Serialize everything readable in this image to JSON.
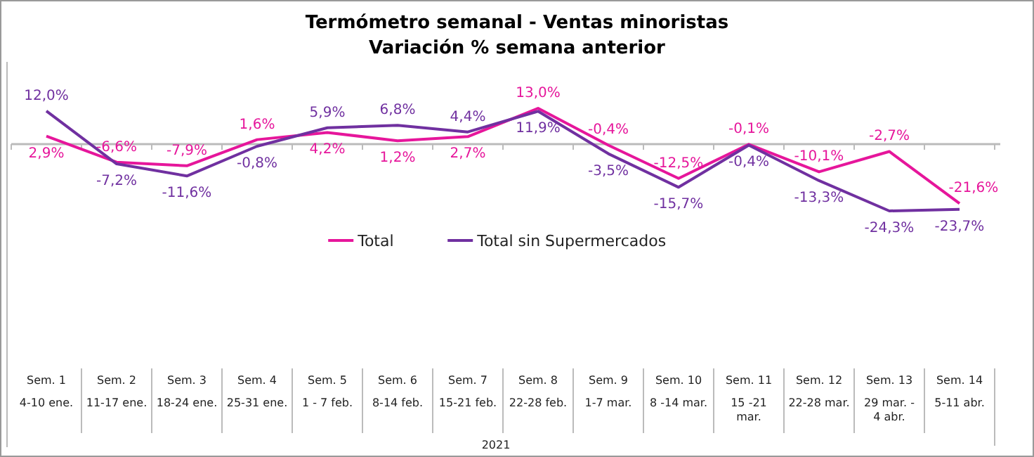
{
  "chart_data": {
    "type": "line",
    "title": "Termómetro semanal - Ventas minoristas",
    "subtitle": "Variación % semana anterior",
    "xlabel": "2021",
    "categories": [
      "Sem. 1\n4-10 ene.",
      "Sem. 2\n11-17 ene.",
      "Sem. 3\n18-24 ene.",
      "Sem. 4\n25-31 ene.",
      "Sem. 5\n1 - 7 feb.",
      "Sem. 6\n8-14 feb.",
      "Sem. 7\n15-21 feb.",
      "Sem. 8\n22-28 feb.",
      "Sem. 9\n1-7 mar.",
      "Sem. 10\n8 -14 mar.",
      "Sem. 11\n15 -21 mar.",
      "Sem. 12\n22-28 mar.",
      "Sem. 13\n29 mar. - 4 abr.",
      "Sem. 14\n5-11 abr."
    ],
    "series": [
      {
        "name": "Total",
        "color": "#e6169b",
        "values": [
          2.9,
          -6.6,
          -7.9,
          1.6,
          4.2,
          1.2,
          2.7,
          13.0,
          -0.4,
          -12.5,
          -0.1,
          -10.1,
          -2.7,
          -21.6
        ],
        "value_labels": [
          "2,9%",
          "-6,6%",
          "-7,9%",
          "1,6%",
          "4,2%",
          "1,2%",
          "2,7%",
          "13,0%",
          "-0,4%",
          "-12,5%",
          "-0,1%",
          "-10,1%",
          "-2,7%",
          "-21,6%"
        ]
      },
      {
        "name": "Total sin Supermercados",
        "color": "#7030a0",
        "values": [
          12.0,
          -7.2,
          -11.6,
          -0.8,
          5.9,
          6.8,
          4.4,
          11.9,
          -3.5,
          -15.7,
          -0.4,
          -13.3,
          -24.3,
          -23.7
        ],
        "value_labels": [
          "12,0%",
          "-7,2%",
          "-11,6%",
          "-0,8%",
          "5,9%",
          "6,8%",
          "4,4%",
          "11,9%",
          "-3,5%",
          "-15,7%",
          "-0,4%",
          "-13,3%",
          "-24,3%",
          "-23,7%"
        ]
      }
    ],
    "legend": "bottom",
    "line_style": "solid"
  }
}
